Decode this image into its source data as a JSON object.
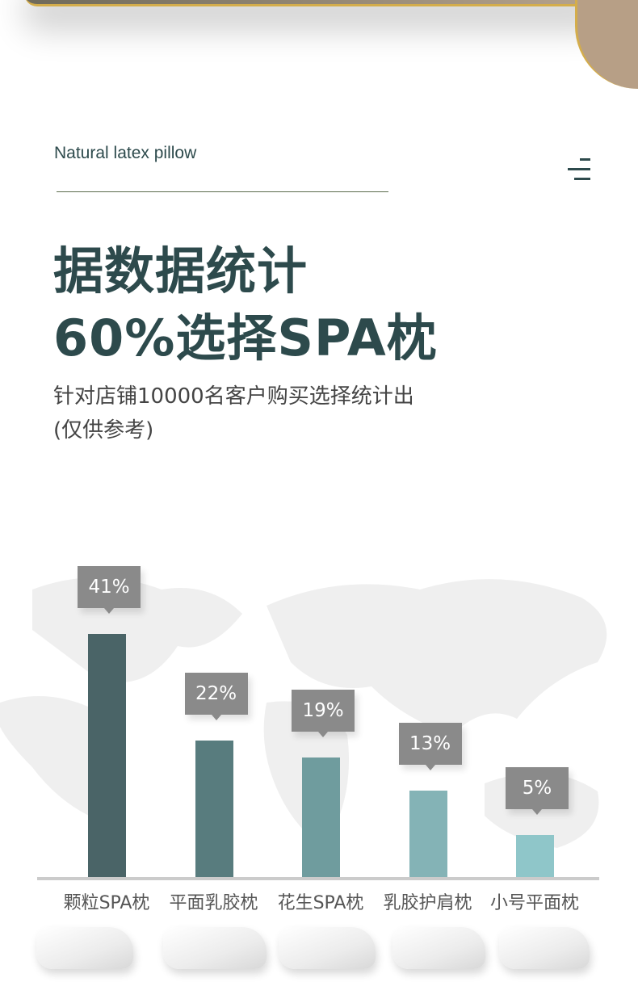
{
  "header": {
    "eyebrow": "Natural latex pillow",
    "menu_icon": "menu-icon"
  },
  "title": {
    "line1": "据数据统计",
    "line2": "60%选择SPA枕"
  },
  "subtitle": {
    "line1": "针对店铺10000名客户购买选择统计出",
    "line2": "(仅供参考)"
  },
  "chart_data": {
    "type": "bar",
    "categories": [
      "颗粒SPA枕",
      "平面乳胶枕",
      "花生SPA枕",
      "乳胶护肩枕",
      "小号平面枕"
    ],
    "values": [
      41,
      22,
      19,
      13,
      5
    ],
    "value_labels": [
      "41%",
      "22%",
      "19%",
      "13%",
      "5%"
    ],
    "unit": "%",
    "colors": [
      "#4a6467",
      "#587c7e",
      "#6f9c9e",
      "#84b3b6",
      "#8fc6c9"
    ],
    "label_box_color": "#8a8a8a",
    "grid": false
  }
}
